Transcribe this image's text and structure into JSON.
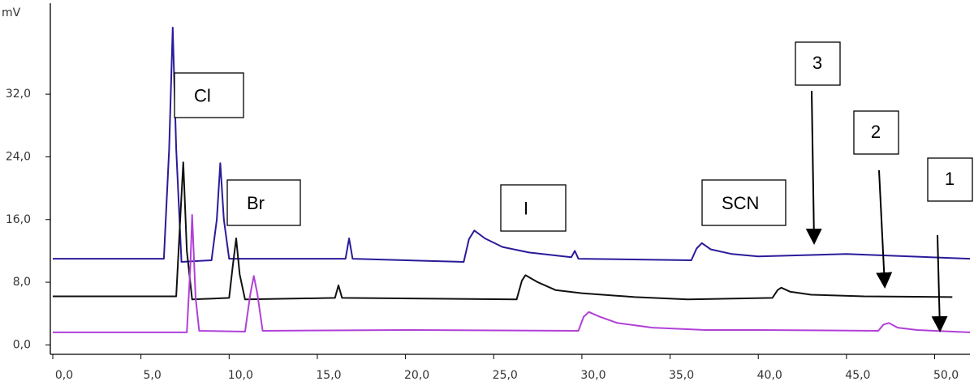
{
  "chart_data": {
    "type": "line",
    "y_label": "mV",
    "xlim": [
      0,
      52
    ],
    "ylim": [
      -1.2,
      43.6
    ],
    "xticks": [
      {
        "value": 0,
        "label": "0,0"
      },
      {
        "value": 5,
        "label": "5,0"
      },
      {
        "value": 10,
        "label": "10,0"
      },
      {
        "value": 15,
        "label": "15,0"
      },
      {
        "value": 20,
        "label": "20,0"
      },
      {
        "value": 25,
        "label": "25,0"
      },
      {
        "value": 30,
        "label": "30,0"
      },
      {
        "value": 35,
        "label": "35,0"
      },
      {
        "value": 40,
        "label": "40,0"
      },
      {
        "value": 45,
        "label": "45,0"
      },
      {
        "value": 50,
        "label": "50,0"
      }
    ],
    "yticks": [
      {
        "value": 0,
        "label": "0,0"
      },
      {
        "value": 8,
        "label": "8,0"
      },
      {
        "value": 16,
        "label": "16,0"
      },
      {
        "value": 24,
        "label": "24,0"
      },
      {
        "value": 32,
        "label": "32,0"
      }
    ],
    "annotations": [
      "Cl",
      "Br",
      "I",
      "SCN"
    ],
    "series": [
      {
        "name": "3",
        "color": "#2a1b9a",
        "x": [
          0,
          6.3,
          6.6,
          6.8,
          7.0,
          7.3,
          9.0,
          9.3,
          9.5,
          9.7,
          10.0,
          16.6,
          16.8,
          17.0,
          23.3,
          23.6,
          23.9,
          24.5,
          25.5,
          27,
          29.4,
          29.6,
          29.8,
          36.2,
          36.5,
          36.8,
          37.3,
          38.5,
          40,
          45,
          52
        ],
        "values": [
          11.0,
          11.0,
          25,
          40.5,
          25,
          10.6,
          10.8,
          16,
          23.2,
          16,
          11.0,
          11.0,
          13.6,
          11.0,
          10.6,
          13.5,
          14.6,
          13.6,
          12.5,
          11.8,
          11.2,
          12.0,
          11.0,
          10.8,
          12.3,
          13.0,
          12.2,
          11.6,
          11.3,
          11.6,
          11.0
        ]
      },
      {
        "name": "2",
        "color": "#111111",
        "x": [
          0,
          7.0,
          7.2,
          7.4,
          7.6,
          7.9,
          10.0,
          10.2,
          10.4,
          10.6,
          10.9,
          16.0,
          16.2,
          16.4,
          26.3,
          26.6,
          26.8,
          27.5,
          28.5,
          30,
          33,
          36,
          40.8,
          41.1,
          41.3,
          41.8,
          43,
          46,
          51
        ],
        "values": [
          6.2,
          6.2,
          15,
          23.3,
          12,
          5.8,
          6.0,
          10,
          13.6,
          9,
          5.8,
          6.0,
          7.6,
          6.0,
          5.8,
          8.2,
          8.9,
          8.0,
          7.0,
          6.6,
          6.1,
          5.8,
          6.0,
          7.0,
          7.3,
          6.8,
          6.4,
          6.2,
          6.1
        ]
      },
      {
        "name": "1",
        "color": "#b040d8",
        "x": [
          0,
          7.6,
          7.8,
          7.9,
          8.1,
          8.3,
          10.9,
          11.2,
          11.4,
          11.6,
          11.9,
          20,
          29.8,
          30.1,
          30.4,
          31,
          32,
          34,
          37,
          40,
          46.8,
          47.1,
          47.4,
          47.9,
          49,
          52
        ],
        "values": [
          1.6,
          1.6,
          10,
          16.6,
          6,
          1.8,
          1.7,
          6.5,
          8.8,
          6.5,
          1.8,
          1.9,
          1.8,
          3.6,
          4.2,
          3.6,
          2.8,
          2.2,
          1.9,
          1.9,
          1.8,
          2.6,
          2.8,
          2.2,
          1.9,
          1.6
        ]
      }
    ]
  }
}
